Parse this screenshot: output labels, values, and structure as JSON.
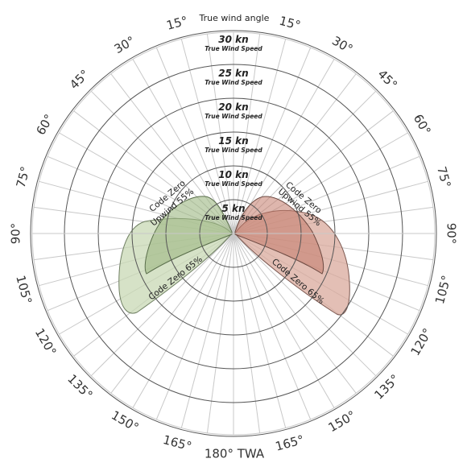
{
  "title": "True wind angle",
  "bottom_label": "180° TWA",
  "angle_labels": {
    "right": [
      "15°",
      "30°",
      "45°",
      "60°",
      "75°",
      "90°",
      "105°",
      "120°",
      "135°",
      "150°",
      "165°"
    ],
    "left": [
      "15°",
      "30°",
      "45°",
      "60°",
      "75°",
      "90°",
      "105°",
      "120°",
      "135°",
      "150°",
      "165°"
    ]
  },
  "rings": [
    {
      "kn": "5 kn",
      "sub": "True Wind Speed"
    },
    {
      "kn": "10 kn",
      "sub": "True Wind Speed"
    },
    {
      "kn": "15 kn",
      "sub": "True Wind Speed"
    },
    {
      "kn": "20 kn",
      "sub": "True Wind Speed"
    },
    {
      "kn": "25 kn",
      "sub": "True Wind Speed"
    },
    {
      "kn": "30 kn",
      "sub": "True Wind Speed"
    }
  ],
  "left_labels": {
    "upper_line1": "Code Zero",
    "upper_line2": "Upwind 55%",
    "lower": "Code Zero 65%"
  },
  "right_labels": {
    "upper_line1": "Code Zero",
    "upper_line2": "Upwind 55%",
    "lower": "Code Zero 65%"
  },
  "colors": {
    "green_fill": "#c8d8b4",
    "green_dark": "#9cb882",
    "red_fill": "#d9a99c",
    "red_dark": "#c37a6a",
    "grid_light": "#c8c8c8",
    "grid_dark": "#555555"
  }
}
